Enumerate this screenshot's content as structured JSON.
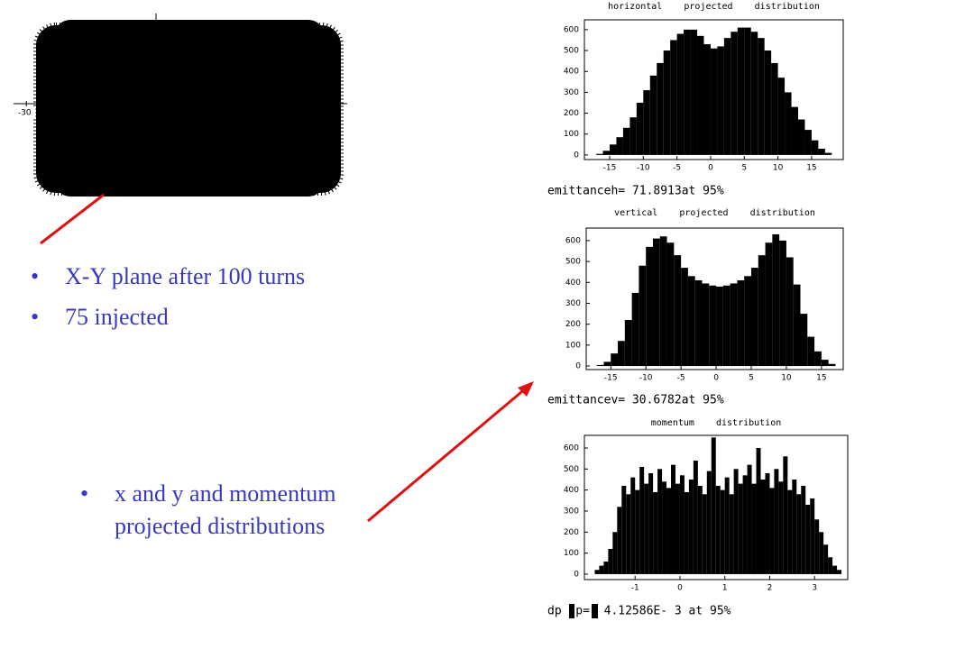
{
  "bullets": [
    "X-Y plane after 100 turns",
    "75 injected"
  ],
  "bullets2": [
    "x and y and momentum projected distributions"
  ],
  "chart_data": [
    {
      "type": "scatter",
      "xlim": [
        -33,
        45
      ],
      "xticks": [
        -30
      ]
    },
    {
      "type": "histogram",
      "title": "horizontal    projected    distribution",
      "caption": "emittanceh= 71.8913at 95%",
      "bins": [
        -18,
        -17,
        -16,
        -15,
        -14,
        -13,
        -12,
        -11,
        -10,
        -9,
        -8,
        -7,
        -6,
        -5,
        -4,
        -3,
        -2,
        -1,
        0,
        1,
        2,
        3,
        4,
        5,
        6,
        7,
        8,
        9,
        10,
        11,
        12,
        13,
        14,
        15,
        16,
        17,
        18,
        19
      ],
      "values": [
        0,
        5,
        20,
        50,
        85,
        130,
        180,
        250,
        310,
        380,
        440,
        500,
        550,
        580,
        600,
        600,
        570,
        530,
        510,
        520,
        560,
        590,
        610,
        610,
        590,
        560,
        500,
        440,
        370,
        300,
        230,
        170,
        120,
        70,
        30,
        10,
        0
      ],
      "color": "#000000",
      "xlim": [
        -18.75,
        19.7
      ],
      "ylim": [
        -22,
        647
      ],
      "xticks": [
        -15,
        -10,
        -5,
        0,
        5,
        10,
        15
      ],
      "yticks": [
        0,
        100,
        200,
        300,
        400,
        500,
        600
      ]
    },
    {
      "type": "histogram",
      "title": "vertical    projected    distribution",
      "caption": "emittancev= 30.6782at 95%",
      "bins": [
        -18,
        -17,
        -16,
        -15,
        -14,
        -13,
        -12,
        -11,
        -10,
        -9,
        -8,
        -7,
        -6,
        -5,
        -4,
        -3,
        -2,
        -1,
        0,
        1,
        2,
        3,
        4,
        5,
        6,
        7,
        8,
        9,
        10,
        11,
        12,
        13,
        14,
        15,
        16,
        17,
        18
      ],
      "values": [
        0,
        5,
        20,
        60,
        120,
        220,
        350,
        480,
        570,
        610,
        620,
        590,
        530,
        470,
        430,
        410,
        395,
        385,
        380,
        385,
        395,
        410,
        430,
        470,
        530,
        590,
        630,
        600,
        520,
        390,
        250,
        140,
        70,
        30,
        10,
        0
      ],
      "color": "#000000",
      "xlim": [
        -18.5,
        18.1
      ],
      "ylim": [
        -17,
        660
      ],
      "xticks": [
        -15,
        -10,
        -5,
        0,
        5,
        10,
        15
      ],
      "yticks": [
        0,
        100,
        200,
        300,
        400,
        500,
        600
      ]
    },
    {
      "type": "histogram",
      "title": "momentum    distribution",
      "caption": "dp  p=  4.12586E- 3 at 95%",
      "bins": [
        -2.0,
        -1.9,
        -1.8,
        -1.7,
        -1.6,
        -1.5,
        -1.4,
        -1.3,
        -1.2,
        -1.1,
        -1.0,
        -0.9,
        -0.8,
        -0.7,
        -0.6,
        -0.5,
        -0.4,
        -0.3,
        -0.2,
        -0.1,
        0.0,
        0.1,
        0.2,
        0.3,
        0.4,
        0.5,
        0.6,
        0.7,
        0.8,
        0.9,
        1.0,
        1.1,
        1.2,
        1.3,
        1.4,
        1.5,
        1.6,
        1.7,
        1.8,
        1.9,
        2.0,
        2.1,
        2.2,
        2.3,
        2.4,
        2.5,
        2.6,
        2.7,
        2.8,
        2.9,
        3.0,
        3.1,
        3.2,
        3.3,
        3.4,
        3.5,
        3.6
      ],
      "values": [
        0,
        20,
        40,
        60,
        120,
        200,
        320,
        420,
        380,
        460,
        400,
        510,
        430,
        480,
        390,
        500,
        440,
        410,
        520,
        430,
        470,
        390,
        450,
        540,
        420,
        380,
        490,
        650,
        420,
        400,
        460,
        380,
        500,
        430,
        470,
        520,
        430,
        600,
        450,
        480,
        410,
        500,
        440,
        560,
        400,
        450,
        380,
        420,
        330,
        360,
        260,
        200,
        140,
        80,
        40,
        20
      ],
      "color": "#000000",
      "xlim": [
        -2.13,
        3.74
      ],
      "ylim": [
        -26,
        660
      ],
      "xticks": [
        -1,
        0,
        1,
        2,
        3
      ],
      "yticks": [
        0,
        100,
        200,
        300,
        400,
        500,
        600
      ]
    }
  ]
}
